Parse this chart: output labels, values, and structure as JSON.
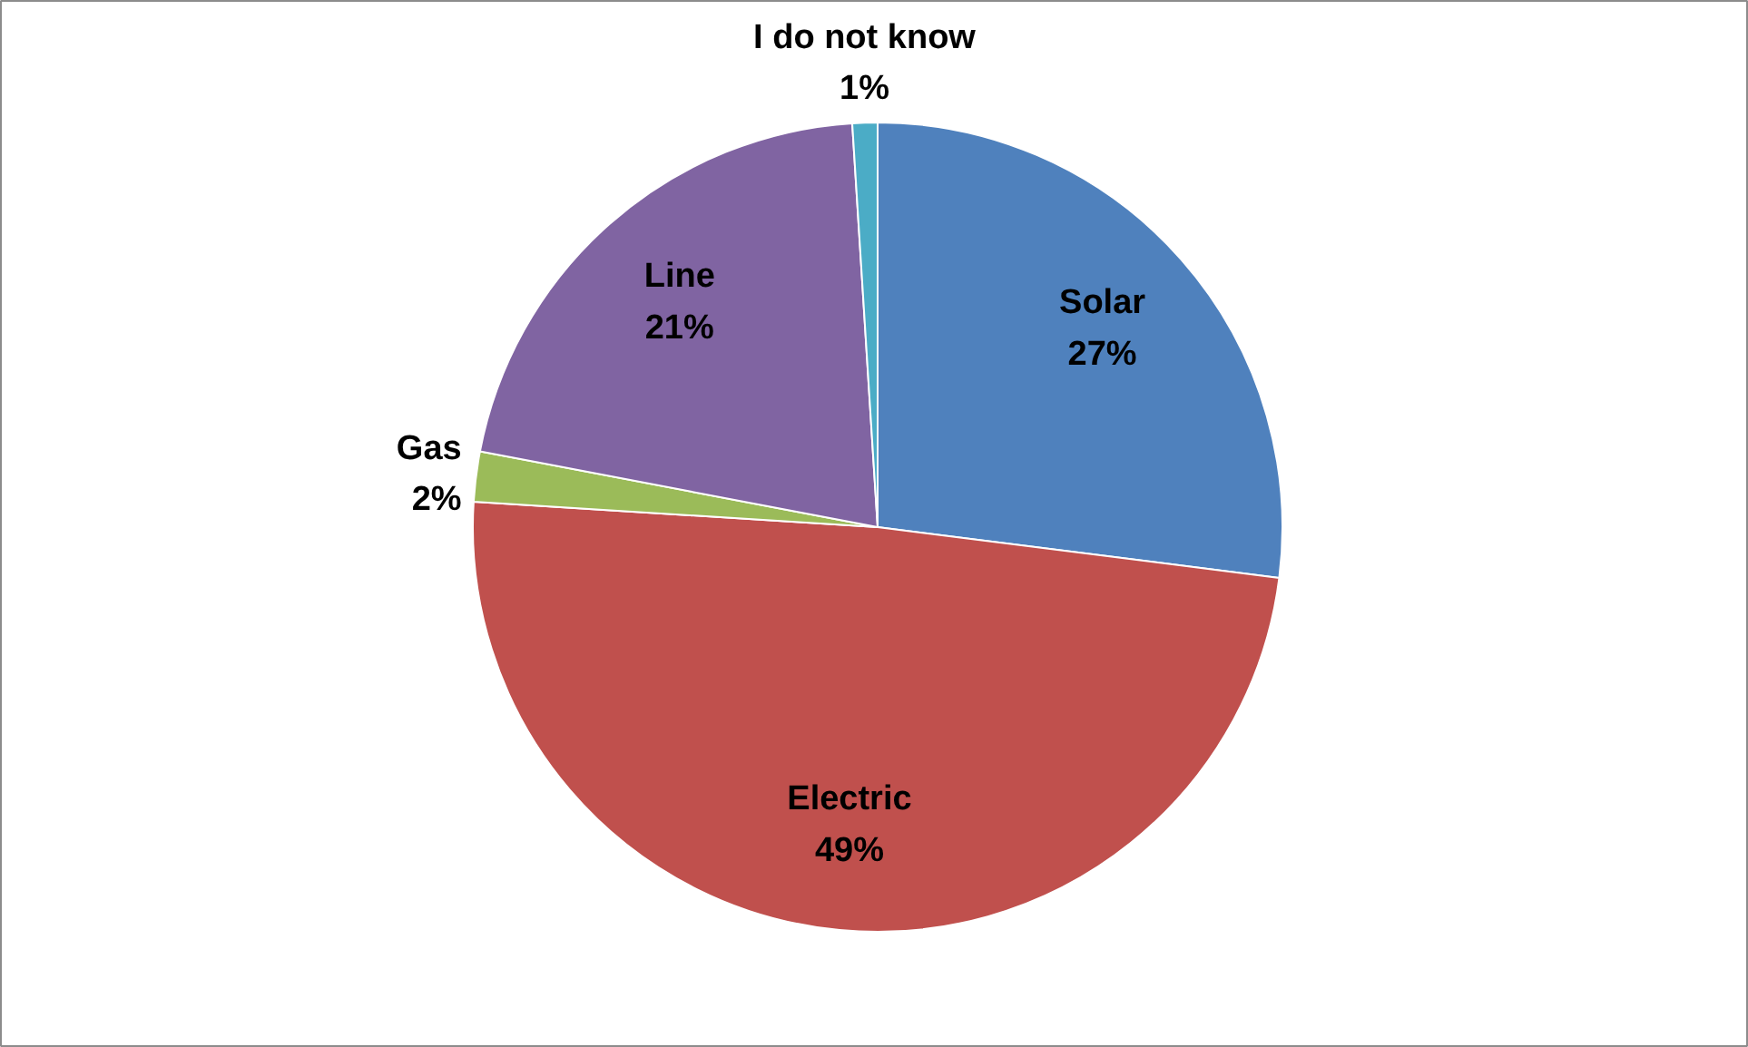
{
  "chart_data": {
    "type": "pie",
    "categories": [
      "Solar",
      "Electric",
      "Gas",
      "Line",
      "I do not know"
    ],
    "values": [
      27,
      49,
      2,
      21,
      1
    ],
    "colors": [
      "#4f81bd",
      "#c0504d",
      "#9bbb59",
      "#8064a2",
      "#4bacc6"
    ],
    "value_labels": [
      "27%",
      "49%",
      "2%",
      "21%",
      "1%"
    ]
  }
}
